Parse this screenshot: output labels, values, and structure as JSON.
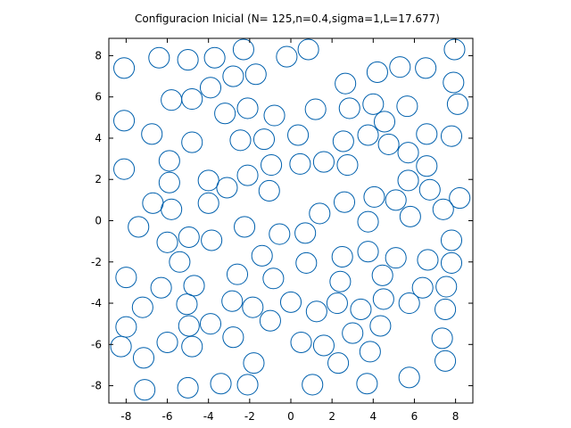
{
  "chart_data": {
    "type": "scatter",
    "title": "Configuracion Inicial (N= 125,n=0.4,sigma=1,L=17.677)",
    "xlabel": "",
    "ylabel": "",
    "xlim": [
      -8.84,
      8.84
    ],
    "ylim": [
      -8.84,
      8.84
    ],
    "xticks": [
      -8,
      -6,
      -4,
      -2,
      0,
      2,
      4,
      6,
      8
    ],
    "yticks": [
      -8,
      -6,
      -4,
      -2,
      0,
      2,
      4,
      6,
      8
    ],
    "grid": false,
    "marker": "open-circle",
    "marker_diameter": 1,
    "color": "#0060ad",
    "points": [
      [
        -8.1,
        7.4
      ],
      [
        -6.4,
        7.9
      ],
      [
        -5.0,
        7.8
      ],
      [
        -3.7,
        7.9
      ],
      [
        -2.3,
        8.3
      ],
      [
        -0.2,
        7.95
      ],
      [
        0.85,
        8.3
      ],
      [
        7.95,
        8.3
      ],
      [
        -2.8,
        7.0
      ],
      [
        -1.7,
        7.1
      ],
      [
        4.2,
        7.2
      ],
      [
        5.3,
        7.45
      ],
      [
        6.55,
        7.4
      ],
      [
        7.9,
        6.7
      ],
      [
        2.65,
        6.65
      ],
      [
        -3.9,
        6.45
      ],
      [
        -5.8,
        5.85
      ],
      [
        -4.8,
        5.9
      ],
      [
        -8.1,
        4.85
      ],
      [
        -3.2,
        5.2
      ],
      [
        -2.1,
        5.45
      ],
      [
        -0.8,
        5.1
      ],
      [
        1.2,
        5.4
      ],
      [
        2.85,
        5.45
      ],
      [
        4.0,
        5.65
      ],
      [
        5.65,
        5.55
      ],
      [
        8.1,
        5.65
      ],
      [
        4.55,
        4.8
      ],
      [
        -6.75,
        4.2
      ],
      [
        -4.8,
        3.8
      ],
      [
        -2.45,
        3.9
      ],
      [
        -1.3,
        3.95
      ],
      [
        0.35,
        4.15
      ],
      [
        2.55,
        3.85
      ],
      [
        3.75,
        4.15
      ],
      [
        4.75,
        3.7
      ],
      [
        5.7,
        3.3
      ],
      [
        6.6,
        4.2
      ],
      [
        7.8,
        4.1
      ],
      [
        -8.1,
        2.5
      ],
      [
        -5.9,
        2.9
      ],
      [
        -0.95,
        2.7
      ],
      [
        0.45,
        2.75
      ],
      [
        1.6,
        2.85
      ],
      [
        2.75,
        2.7
      ],
      [
        6.6,
        2.65
      ],
      [
        -5.9,
        1.85
      ],
      [
        -4.0,
        1.95
      ],
      [
        -3.1,
        1.6
      ],
      [
        -2.1,
        2.2
      ],
      [
        -1.05,
        1.45
      ],
      [
        5.7,
        1.95
      ],
      [
        6.75,
        1.5
      ],
      [
        -6.7,
        0.85
      ],
      [
        -5.8,
        0.55
      ],
      [
        -4.0,
        0.85
      ],
      [
        1.4,
        0.35
      ],
      [
        2.6,
        0.9
      ],
      [
        4.05,
        1.15
      ],
      [
        5.1,
        1.0
      ],
      [
        5.8,
        0.2
      ],
      [
        7.4,
        0.55
      ],
      [
        8.2,
        1.1
      ],
      [
        -7.4,
        -0.3
      ],
      [
        -2.25,
        -0.3
      ],
      [
        -0.55,
        -0.65
      ],
      [
        0.7,
        -0.6
      ],
      [
        3.75,
        -0.05
      ],
      [
        -6.0,
        -1.05
      ],
      [
        -4.95,
        -0.8
      ],
      [
        -3.85,
        -0.95
      ],
      [
        7.8,
        -0.95
      ],
      [
        -5.4,
        -2.0
      ],
      [
        -1.4,
        -1.7
      ],
      [
        0.75,
        -2.05
      ],
      [
        2.5,
        -1.75
      ],
      [
        3.75,
        -1.5
      ],
      [
        5.1,
        -1.8
      ],
      [
        6.65,
        -1.9
      ],
      [
        7.8,
        -2.05
      ],
      [
        -8.0,
        -2.75
      ],
      [
        -6.3,
        -3.25
      ],
      [
        -4.7,
        -3.15
      ],
      [
        -2.6,
        -2.6
      ],
      [
        -0.85,
        -2.8
      ],
      [
        2.4,
        -2.95
      ],
      [
        4.45,
        -2.65
      ],
      [
        6.4,
        -3.25
      ],
      [
        7.55,
        -3.2
      ],
      [
        -7.2,
        -4.2
      ],
      [
        -5.05,
        -4.05
      ],
      [
        -2.85,
        -3.9
      ],
      [
        -1.85,
        -4.2
      ],
      [
        0.0,
        -3.95
      ],
      [
        1.25,
        -4.4
      ],
      [
        2.25,
        -4.0
      ],
      [
        3.4,
        -4.3
      ],
      [
        4.5,
        -3.8
      ],
      [
        5.75,
        -4.0
      ],
      [
        7.5,
        -4.3
      ],
      [
        -8.0,
        -5.15
      ],
      [
        -4.95,
        -5.1
      ],
      [
        -3.9,
        -5.0
      ],
      [
        -1.0,
        -4.85
      ],
      [
        4.35,
        -5.1
      ],
      [
        -8.25,
        -6.1
      ],
      [
        -6.0,
        -5.9
      ],
      [
        -4.8,
        -6.1
      ],
      [
        -2.8,
        -5.65
      ],
      [
        0.5,
        -5.9
      ],
      [
        1.6,
        -6.05
      ],
      [
        3.0,
        -5.45
      ],
      [
        7.35,
        -5.7
      ],
      [
        -7.15,
        -6.65
      ],
      [
        -1.8,
        -6.9
      ],
      [
        2.3,
        -6.9
      ],
      [
        3.85,
        -6.35
      ],
      [
        7.5,
        -6.8
      ],
      [
        -7.1,
        -8.2
      ],
      [
        -5.0,
        -8.1
      ],
      [
        -3.4,
        -7.9
      ],
      [
        -2.1,
        -7.95
      ],
      [
        1.05,
        -7.95
      ],
      [
        3.7,
        -7.9
      ],
      [
        5.75,
        -7.6
      ]
    ]
  }
}
